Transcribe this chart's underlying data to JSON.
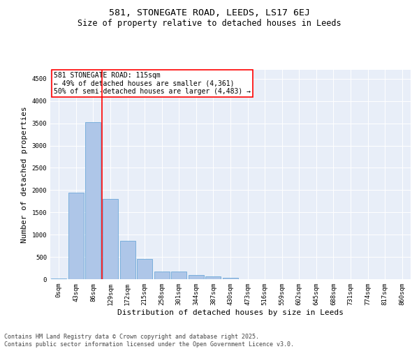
{
  "title_line1": "581, STONEGATE ROAD, LEEDS, LS17 6EJ",
  "title_line2": "Size of property relative to detached houses in Leeds",
  "xlabel": "Distribution of detached houses by size in Leeds",
  "ylabel": "Number of detached properties",
  "categories": [
    "0sqm",
    "43sqm",
    "86sqm",
    "129sqm",
    "172sqm",
    "215sqm",
    "258sqm",
    "301sqm",
    "344sqm",
    "387sqm",
    "430sqm",
    "473sqm",
    "516sqm",
    "559sqm",
    "602sqm",
    "645sqm",
    "688sqm",
    "731sqm",
    "774sqm",
    "817sqm",
    "860sqm"
  ],
  "values": [
    20,
    1940,
    3520,
    1800,
    855,
    450,
    175,
    165,
    90,
    55,
    30,
    0,
    0,
    0,
    0,
    0,
    0,
    0,
    0,
    0,
    0
  ],
  "bar_color": "#aec6e8",
  "bar_edge_color": "#5a9fd4",
  "vline_color": "red",
  "vline_x": 2.5,
  "annotation_text": "581 STONEGATE ROAD: 115sqm\n← 49% of detached houses are smaller (4,361)\n50% of semi-detached houses are larger (4,483) →",
  "annotation_box_color": "white",
  "annotation_box_edge": "red",
  "ylim": [
    0,
    4700
  ],
  "yticks": [
    0,
    500,
    1000,
    1500,
    2000,
    2500,
    3000,
    3500,
    4000,
    4500
  ],
  "background_color": "#e8eef8",
  "footer_text": "Contains HM Land Registry data © Crown copyright and database right 2025.\nContains public sector information licensed under the Open Government Licence v3.0.",
  "title_fontsize": 9.5,
  "subtitle_fontsize": 8.5,
  "tick_fontsize": 6.5,
  "ylabel_fontsize": 8,
  "xlabel_fontsize": 8,
  "annotation_fontsize": 7,
  "footer_fontsize": 6
}
